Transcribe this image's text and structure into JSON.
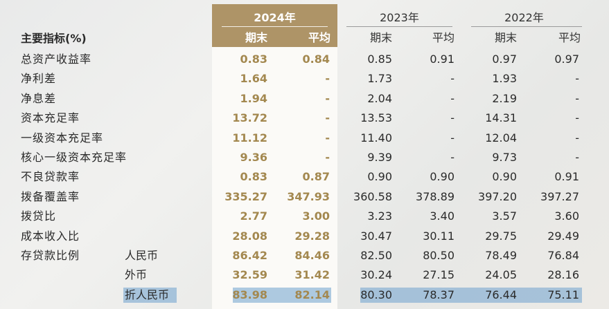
{
  "table": {
    "title": "主要指标(%)",
    "years": [
      "2024年",
      "2023年",
      "2022年"
    ],
    "sub_headers": [
      "期末",
      "平均",
      "期末",
      "平均",
      "期末",
      "平均"
    ],
    "rows": [
      {
        "label": "总资产收益率",
        "sub": "",
        "values": [
          "0.83",
          "0.84",
          "0.85",
          "0.91",
          "0.97",
          "0.97"
        ]
      },
      {
        "label": "净利差",
        "sub": "",
        "values": [
          "1.64",
          "-",
          "1.73",
          "-",
          "1.93",
          "-"
        ]
      },
      {
        "label": "净息差",
        "sub": "",
        "values": [
          "1.94",
          "-",
          "2.04",
          "-",
          "2.19",
          "-"
        ]
      },
      {
        "label": "资本充足率",
        "sub": "",
        "values": [
          "13.72",
          "-",
          "13.53",
          "-",
          "14.31",
          "-"
        ]
      },
      {
        "label": "一级资本充足率",
        "sub": "",
        "values": [
          "11.12",
          "-",
          "11.40",
          "-",
          "12.04",
          "-"
        ]
      },
      {
        "label": "核心一级资本充足率",
        "sub": "",
        "values": [
          "9.36",
          "-",
          "9.39",
          "-",
          "9.73",
          "-"
        ]
      },
      {
        "label": "不良贷款率",
        "sub": "",
        "values": [
          "0.83",
          "0.87",
          "0.90",
          "0.90",
          "0.90",
          "0.91"
        ]
      },
      {
        "label": "拨备覆盖率",
        "sub": "",
        "values": [
          "335.27",
          "347.93",
          "360.58",
          "378.89",
          "397.20",
          "397.27"
        ]
      },
      {
        "label": "拨贷比",
        "sub": "",
        "values": [
          "2.77",
          "3.00",
          "3.23",
          "3.40",
          "3.57",
          "3.60"
        ]
      },
      {
        "label": "成本收入比",
        "sub": "",
        "values": [
          "28.08",
          "29.28",
          "30.47",
          "30.11",
          "29.75",
          "29.49"
        ]
      },
      {
        "label": "存贷款比例",
        "sub": "人民币",
        "values": [
          "86.42",
          "84.46",
          "82.50",
          "80.50",
          "78.49",
          "76.84"
        ]
      },
      {
        "label": "",
        "sub": "外币",
        "values": [
          "32.59",
          "31.42",
          "30.24",
          "27.15",
          "24.05",
          "28.16"
        ]
      },
      {
        "label": "",
        "sub": "折人民币",
        "values": [
          "83.98",
          "82.14",
          "80.30",
          "78.37",
          "76.44",
          "75.11"
        ],
        "highlighted": true
      }
    ]
  },
  "colors": {
    "accent_gold": "#ae9467",
    "value_gold": "#a3884f",
    "highlight_blue": "#6ea0cd"
  }
}
